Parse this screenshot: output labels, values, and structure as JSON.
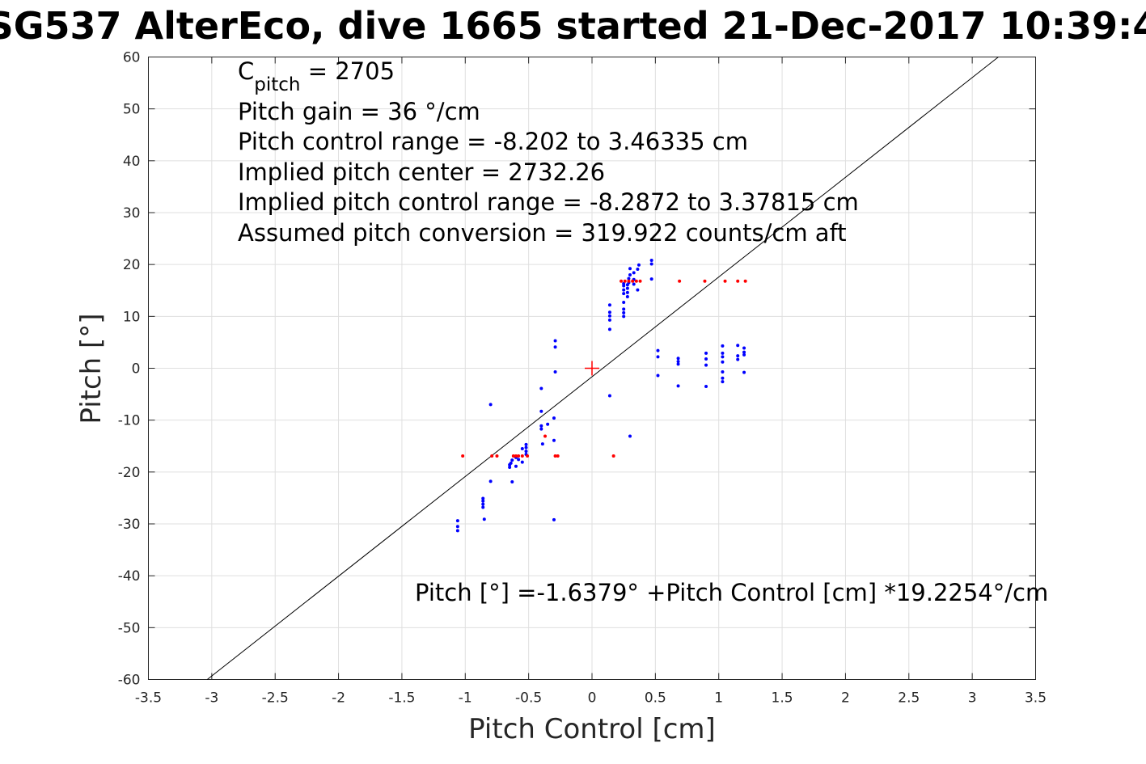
{
  "chart_data": {
    "type": "scatter",
    "title": "SG537 AlterEco, dive 1665 started 21-Dec-2017 10:39:4",
    "xlabel": "Pitch Control [cm]",
    "ylabel": "Pitch [°]",
    "xlim": [
      -3.5,
      3.5
    ],
    "ylim": [
      -60,
      60
    ],
    "xticks": [
      -3.5,
      -3,
      -2.5,
      -2,
      -1.5,
      -1,
      -0.5,
      0,
      0.5,
      1,
      1.5,
      2,
      2.5,
      3,
      3.5
    ],
    "xtick_labels": [
      "-3.5",
      "-3",
      "-2.5",
      "-2",
      "-1.5",
      "-1",
      "-0.5",
      "0",
      "0.5",
      "1",
      "1.5",
      "2",
      "2.5",
      "3",
      "3.5"
    ],
    "yticks": [
      -60,
      -50,
      -40,
      -30,
      -20,
      -10,
      0,
      10,
      20,
      30,
      40,
      50,
      60
    ],
    "ytick_labels": [
      "-60",
      "-50",
      "-40",
      "-30",
      "-20",
      "-10",
      "0",
      "10",
      "20",
      "30",
      "40",
      "50",
      "60"
    ],
    "grid": true,
    "annotations": {
      "c_pitch_main": "C",
      "c_pitch_sub": "pitch",
      "c_pitch_value": " = 2705",
      "line2": "Pitch gain = 36 °/cm",
      "line3": "Pitch control range = -8.202 to 3.46335 cm",
      "line4": "Implied pitch center = 2732.26",
      "line5": "Implied pitch control range = -8.2872 to 3.37815 cm",
      "line6": "Assumed pitch conversion = 319.922 counts/cm aft",
      "fit_equation": "Pitch [°] =-1.6379° +Pitch Control [cm] *19.2254°/cm"
    },
    "fit_line": {
      "intercept": -1.6379,
      "slope": 19.2254,
      "color": "#000000"
    },
    "center_marker": {
      "x": 0,
      "y": 0,
      "color": "#ff0000"
    },
    "series": [
      {
        "color": "#0000ff",
        "points": [
          [
            -1.06,
            -29.4
          ],
          [
            -1.06,
            -30.5
          ],
          [
            -1.06,
            -31.3
          ],
          [
            -0.86,
            -25.1
          ],
          [
            -0.86,
            -25.6
          ],
          [
            -0.86,
            -26.2
          ],
          [
            -0.86,
            -26.8
          ],
          [
            -0.85,
            -29.1
          ],
          [
            -0.8,
            -7
          ],
          [
            -0.8,
            -21.8
          ],
          [
            -0.65,
            -18.6
          ],
          [
            -0.65,
            -19.1
          ],
          [
            -0.64,
            -18.3
          ],
          [
            -0.63,
            -17.7
          ],
          [
            -0.63,
            -21.9
          ],
          [
            -0.6,
            -17.2
          ],
          [
            -0.6,
            -18.9
          ],
          [
            -0.58,
            -17.6
          ],
          [
            -0.55,
            -15.5
          ],
          [
            -0.55,
            -18.1
          ],
          [
            -0.52,
            -14.7
          ],
          [
            -0.52,
            -15.3
          ],
          [
            -0.52,
            -16.0
          ],
          [
            -0.52,
            -16.6
          ],
          [
            -0.4,
            -3.9
          ],
          [
            -0.4,
            -8.3
          ],
          [
            -0.4,
            -11.1
          ],
          [
            -0.4,
            -11.7
          ],
          [
            -0.39,
            -14.6
          ],
          [
            -0.35,
            -10.8
          ],
          [
            -0.3,
            -9.6
          ],
          [
            -0.3,
            -13.9
          ],
          [
            -0.3,
            -29.2
          ],
          [
            -0.29,
            5.3
          ],
          [
            -0.29,
            4.1
          ],
          [
            -0.29,
            -0.7
          ],
          [
            0.14,
            -5.3
          ],
          [
            0.14,
            7.5
          ],
          [
            0.14,
            9.3
          ],
          [
            0.14,
            10.1
          ],
          [
            0.14,
            10.8
          ],
          [
            0.14,
            12.2
          ],
          [
            0.25,
            10.0
          ],
          [
            0.25,
            10.7
          ],
          [
            0.25,
            11.4
          ],
          [
            0.25,
            12.7
          ],
          [
            0.25,
            14.4
          ],
          [
            0.25,
            15.1
          ],
          [
            0.25,
            15.9
          ],
          [
            0.25,
            16.3
          ],
          [
            0.28,
            13.8
          ],
          [
            0.28,
            14.6
          ],
          [
            0.28,
            15.4
          ],
          [
            0.28,
            16.1
          ],
          [
            0.29,
            16.5
          ],
          [
            0.29,
            17.3
          ],
          [
            0.3,
            18.0
          ],
          [
            0.3,
            19.2
          ],
          [
            0.3,
            -13.1
          ],
          [
            0.33,
            16.2
          ],
          [
            0.33,
            17.1
          ],
          [
            0.33,
            18.4
          ],
          [
            0.36,
            15.1
          ],
          [
            0.36,
            19.1
          ],
          [
            0.37,
            19.9
          ],
          [
            0.47,
            17.2
          ],
          [
            0.47,
            20.1
          ],
          [
            0.47,
            20.8
          ],
          [
            0.52,
            3.4
          ],
          [
            0.52,
            2.2
          ],
          [
            0.52,
            -1.4
          ],
          [
            0.68,
            1.9
          ],
          [
            0.68,
            1.3
          ],
          [
            0.68,
            0.8
          ],
          [
            0.68,
            -3.4
          ],
          [
            0.9,
            2.9
          ],
          [
            0.9,
            1.8
          ],
          [
            0.9,
            0.6
          ],
          [
            0.9,
            -3.5
          ],
          [
            1.03,
            4.3
          ],
          [
            1.03,
            2.9
          ],
          [
            1.03,
            2.2
          ],
          [
            1.03,
            1.2
          ],
          [
            1.03,
            -0.7
          ],
          [
            1.03,
            -1.9
          ],
          [
            1.03,
            -2.6
          ],
          [
            1.15,
            4.4
          ],
          [
            1.15,
            2.4
          ],
          [
            1.15,
            1.7
          ],
          [
            1.2,
            3.9
          ],
          [
            1.2,
            3.1
          ],
          [
            1.2,
            2.6
          ],
          [
            1.2,
            -0.8
          ]
        ]
      },
      {
        "color": "#ff0000",
        "points": [
          [
            -1.02,
            -16.9
          ],
          [
            -0.79,
            -16.9
          ],
          [
            -0.75,
            -16.9
          ],
          [
            -0.62,
            -16.9
          ],
          [
            -0.6,
            -16.9
          ],
          [
            -0.58,
            -16.9
          ],
          [
            -0.55,
            -16.9
          ],
          [
            -0.51,
            -16.9
          ],
          [
            -0.37,
            -13.1
          ],
          [
            -0.29,
            -16.9
          ],
          [
            -0.27,
            -16.9
          ],
          [
            0.17,
            -16.9
          ],
          [
            0.23,
            16.8
          ],
          [
            0.26,
            16.8
          ],
          [
            0.29,
            16.8
          ],
          [
            0.32,
            16.8
          ],
          [
            0.35,
            16.8
          ],
          [
            0.38,
            16.8
          ],
          [
            0.69,
            16.8
          ],
          [
            0.89,
            16.8
          ],
          [
            1.05,
            16.8
          ],
          [
            1.15,
            16.8
          ],
          [
            1.21,
            16.8
          ]
        ]
      }
    ]
  }
}
